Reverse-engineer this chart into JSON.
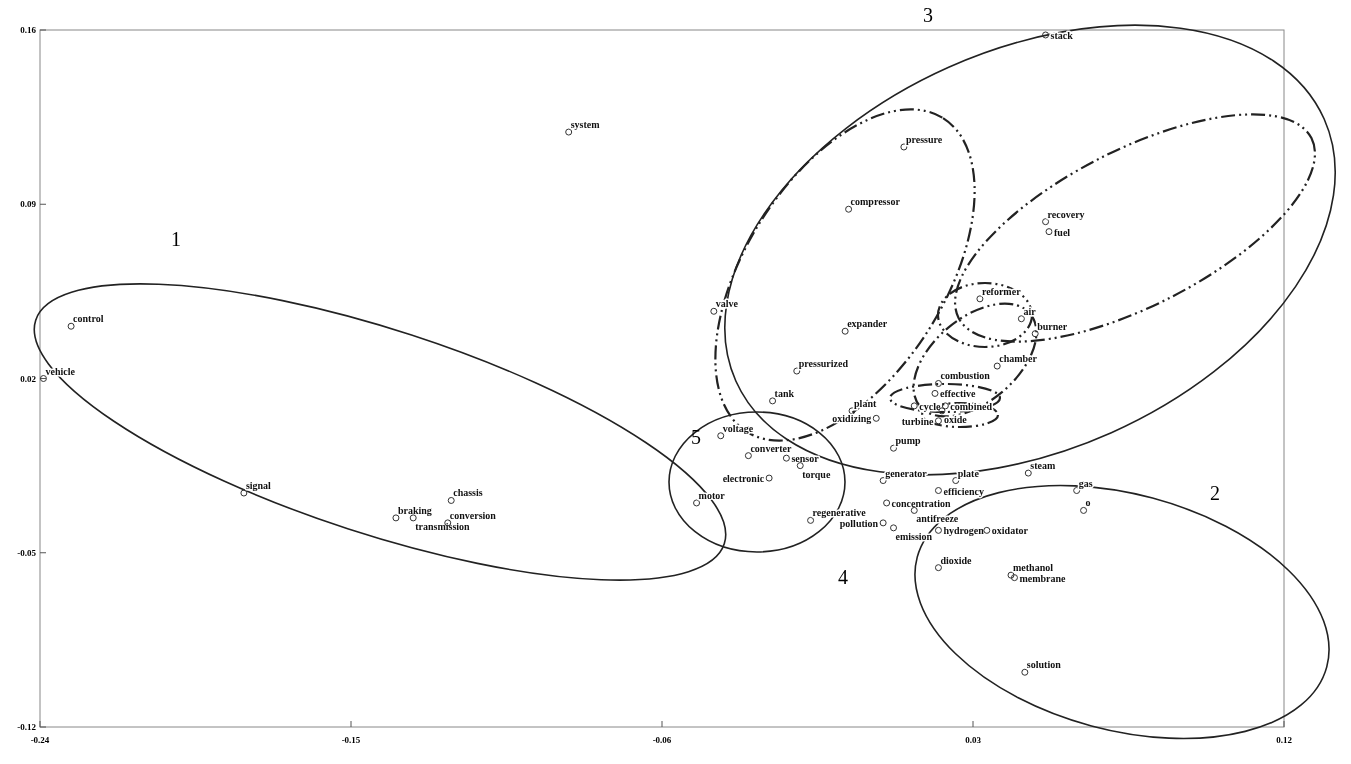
{
  "chart_data": {
    "type": "scatter",
    "marker": "circle",
    "grid": false,
    "data_labels": false,
    "xlim": [
      -0.24,
      0.12
    ],
    "xticks": [
      -0.24,
      -0.15,
      -0.06,
      0.03,
      0.12
    ],
    "ylim": [
      -0.12,
      0.16
    ],
    "yticks": [
      -0.12,
      -0.05,
      0.02,
      0.09,
      0.16
    ],
    "annotations": [
      "1",
      "2",
      "3",
      "4",
      "5"
    ],
    "series": [
      {
        "color": "#333333",
        "x": [
          0.051,
          -0.087,
          0.01,
          -0.006,
          0.051,
          0.052,
          -0.231,
          -0.239,
          0.032,
          0.044,
          0.048,
          -0.045,
          -0.007,
          -0.021,
          0.037,
          -0.028,
          0.02,
          0.019,
          0.013,
          0.022,
          0.021,
          0.02,
          -0.005,
          0.002,
          -0.043,
          0.007,
          -0.035,
          -0.024,
          -0.02,
          -0.029,
          -0.181,
          0.004,
          0.025,
          0.046,
          0.06,
          0.02,
          -0.121,
          0.005,
          -0.05,
          0.062,
          0.013,
          -0.137,
          -0.132,
          -0.122,
          -0.017,
          0.004,
          0.007,
          0.02,
          0.034,
          0.02,
          0.041,
          0.042,
          0.045
        ],
        "values": [
          0.158,
          0.119,
          0.113,
          0.088,
          0.083,
          0.079,
          0.041,
          0.02,
          0.052,
          0.044,
          0.038,
          0.047,
          0.039,
          0.023,
          0.025,
          0.011,
          0.018,
          0.014,
          0.009,
          0.009,
          0.007,
          0.003,
          0.007,
          0.004,
          -0.003,
          -0.008,
          -0.011,
          -0.012,
          -0.015,
          -0.02,
          -0.026,
          -0.021,
          -0.021,
          -0.018,
          -0.025,
          -0.025,
          -0.029,
          -0.03,
          -0.03,
          -0.033,
          -0.033,
          -0.036,
          -0.036,
          -0.038,
          -0.037,
          -0.038,
          -0.04,
          -0.041,
          -0.041,
          -0.056,
          -0.059,
          -0.06,
          -0.098
        ],
        "value_labels": [
          "stack",
          "system",
          "pressure",
          "compressor",
          "recovery",
          "fuel",
          "control",
          "vehicle",
          "reformer",
          "air",
          "burner",
          "valve",
          "expander",
          "pressurized",
          "chamber",
          "tank",
          "combustion",
          "effective",
          "cycle",
          "combined",
          "oxide",
          "turbine",
          "plant",
          "oxidizing",
          "voltage",
          "pump",
          "converter",
          "sensor",
          "torque",
          "electronic",
          "signal",
          "generator",
          "plate",
          "steam",
          "gas",
          "efficiency",
          "chassis",
          "concentration",
          "motor",
          "o",
          "antifreeze",
          "braking",
          "transmission",
          "conversion",
          "regenerative",
          "pollution",
          "emission",
          "hydrogen",
          "oxidator",
          "dioxide",
          "methanol",
          "membrane",
          "solution"
        ]
      }
    ]
  }
}
